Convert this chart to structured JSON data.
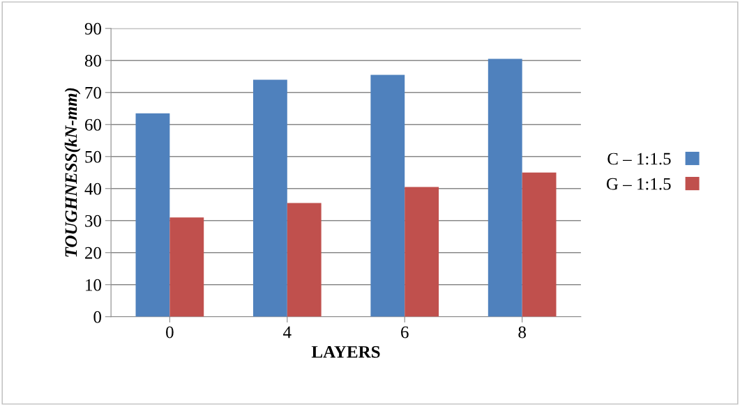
{
  "chart_data": {
    "type": "bar",
    "xlabel": "LAYERS",
    "ylabel": "TOUGHNESS(kN-mm)",
    "categories": [
      "0",
      "4",
      "6",
      "8"
    ],
    "series": [
      {
        "name": "C – 1:1.5",
        "color": "#4f81bd",
        "values": [
          63.5,
          74,
          75.5,
          80.5
        ]
      },
      {
        "name": "G – 1:1.5",
        "color": "#c0504d",
        "values": [
          31,
          35.5,
          40.5,
          45
        ]
      }
    ],
    "ylim": [
      0,
      90
    ],
    "yticks": [
      0,
      10,
      20,
      30,
      40,
      50,
      60,
      70,
      80,
      90
    ],
    "grid": "y",
    "legend": "right"
  }
}
